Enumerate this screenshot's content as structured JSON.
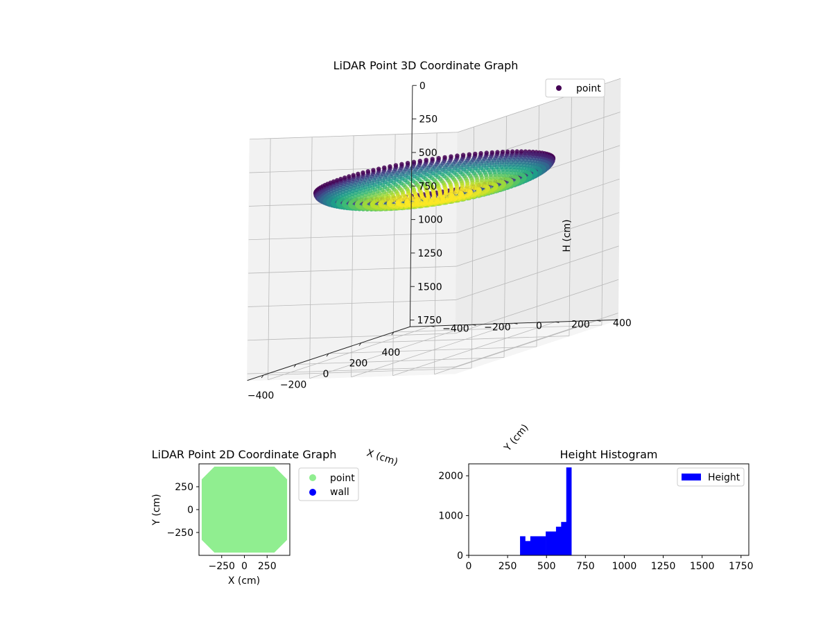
{
  "chart_data": [
    {
      "type": "scatter3d",
      "title": "LiDAR Point 3D Coordinate Graph",
      "xlabel": "X (cm)",
      "ylabel": "Y (cm)",
      "zlabel": "H (cm)",
      "x_ticks": [
        -400,
        -200,
        0,
        200,
        400
      ],
      "y_ticks": [
        -400,
        -200,
        0,
        200,
        400
      ],
      "z_ticks": [
        0,
        250,
        500,
        750,
        1000,
        1250,
        1500,
        1750
      ],
      "x_tick_labels": [
        "−400",
        "−200",
        "0",
        "200",
        "400"
      ],
      "y_tick_labels": [
        "−400",
        "−200",
        "0",
        "200",
        "400"
      ],
      "z_tick_labels": [
        "0",
        "250",
        "500",
        "750",
        "1000",
        "1250",
        "1500",
        "1750"
      ],
      "xlim": [
        -500,
        500
      ],
      "ylim": [
        -500,
        500
      ],
      "zlim": [
        0,
        1800
      ],
      "z_inverted": true,
      "colormap": "viridis",
      "surface": "hemispherical bowl, rim near H=500 at radius ~450, bottom near H=670",
      "legend": [
        {
          "label": "point",
          "color": "#440154"
        }
      ],
      "legend_position": "upper-right"
    },
    {
      "type": "scatter",
      "title": "LiDAR Point 2D Coordinate Graph",
      "xlabel": "X (cm)",
      "ylabel": "Y (cm)",
      "x_ticks": [
        -250,
        0,
        250
      ],
      "y_ticks": [
        -250,
        0,
        250
      ],
      "x_tick_labels": [
        "−250",
        "0",
        "250"
      ],
      "y_tick_labels": [
        "−250",
        "0",
        "250"
      ],
      "xlim": [
        -500,
        500
      ],
      "ylim": [
        -500,
        500
      ],
      "series": [
        {
          "name": "point",
          "color": "#90ee90",
          "shape": "octagon",
          "half_extent": 470,
          "corner_cut": 140
        },
        {
          "name": "wall",
          "color": "#0000ff"
        }
      ],
      "legend_position": "outside-right"
    },
    {
      "type": "bar",
      "title": "Height Histogram",
      "xlabel": "",
      "ylabel": "",
      "x_ticks": [
        0,
        250,
        500,
        750,
        1000,
        1250,
        1500,
        1750
      ],
      "y_ticks": [
        0,
        1000,
        2000
      ],
      "xlim": [
        0,
        1800
      ],
      "ylim": [
        0,
        2300
      ],
      "bin_width": 33,
      "bins": [
        {
          "start": 330,
          "count": 480
        },
        {
          "start": 363,
          "count": 360
        },
        {
          "start": 396,
          "count": 480
        },
        {
          "start": 429,
          "count": 480
        },
        {
          "start": 462,
          "count": 480
        },
        {
          "start": 495,
          "count": 600
        },
        {
          "start": 528,
          "count": 600
        },
        {
          "start": 561,
          "count": 720
        },
        {
          "start": 594,
          "count": 840
        },
        {
          "start": 627,
          "count": 2210
        }
      ],
      "legend": [
        {
          "label": "Height",
          "color": "#0000ff"
        }
      ],
      "legend_position": "top-right"
    }
  ]
}
